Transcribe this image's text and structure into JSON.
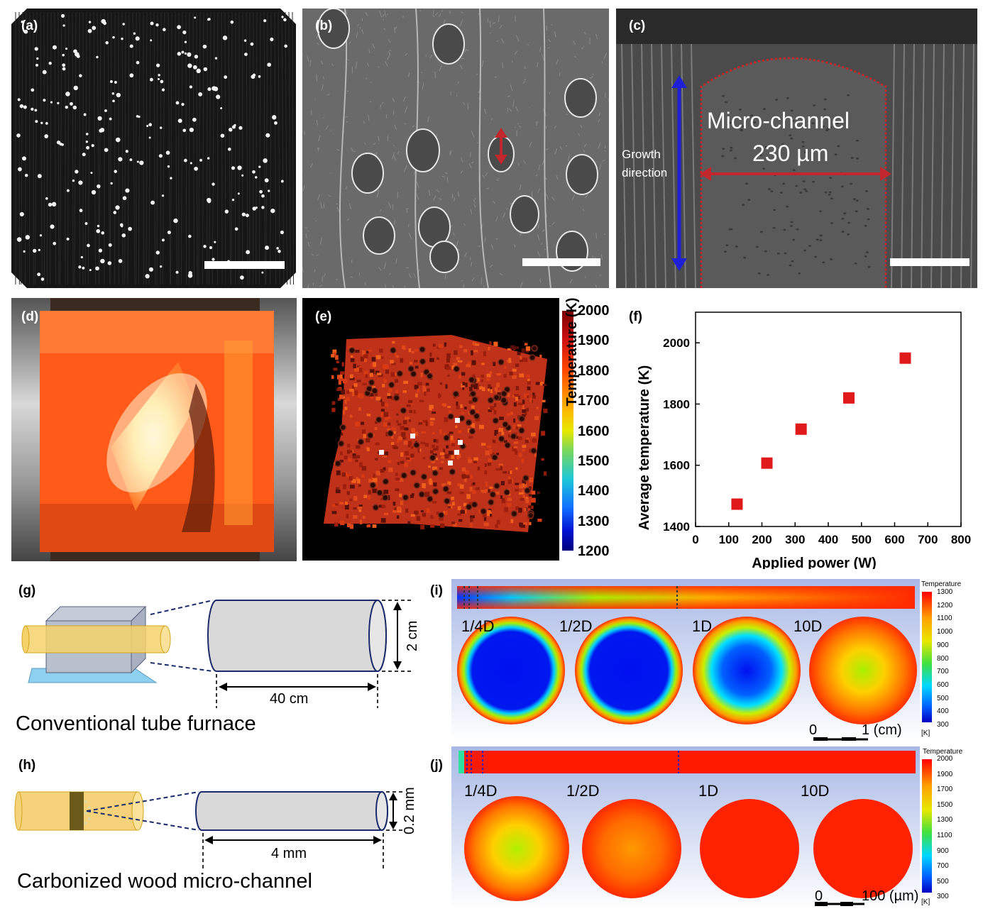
{
  "panels": {
    "a": {
      "label": "(a)"
    },
    "b": {
      "label": "(b)"
    },
    "c": {
      "label": "(c)",
      "channel_title": "Micro-channel",
      "channel_width": "230 µm",
      "growth_line1": "Growth",
      "growth_line2": "direction"
    },
    "d": {
      "label": "(d)"
    },
    "e": {
      "label": "(e)",
      "colorbar_title": "Temperature (K)",
      "ticks": [
        "2000",
        "1900",
        "1800",
        "1700",
        "1600",
        "1500",
        "1400",
        "1300",
        "1200"
      ]
    },
    "f": {
      "label": "(f)"
    },
    "g": {
      "label": "(g)",
      "dim_diameter": "2 cm",
      "dim_length": "40 cm",
      "caption": "Conventional tube furnace"
    },
    "h": {
      "label": "(h)",
      "dim_diameter": "0.2 mm",
      "dim_length": "4 mm",
      "caption": "Carbonized wood micro-channel"
    },
    "i": {
      "label": "(i)",
      "sections": [
        "1/4D",
        "1/2D",
        "1D",
        "10D"
      ],
      "legend_title": "Temperature",
      "legend_unit": "[K]",
      "legend_ticks": [
        "1300",
        "1200",
        "1100",
        "1000",
        "900",
        "800",
        "700",
        "600",
        "500",
        "400",
        "300"
      ],
      "scale_zero": "0",
      "scale_end": "1 (cm)"
    },
    "j": {
      "label": "(j)",
      "sections": [
        "1/4D",
        "1/2D",
        "1D",
        "10D"
      ],
      "legend_title": "Temperature",
      "legend_unit": "[K]",
      "legend_ticks": [
        "2000",
        "1900",
        "1700",
        "1500",
        "1300",
        "1100",
        "900",
        "700",
        "500",
        "300"
      ],
      "scale_zero": "0",
      "scale_end": "100 (µm)"
    }
  },
  "colors": {
    "red_dim": "#c1272d",
    "blue_arrow": "#1f1fd6",
    "marker": "#e0191b"
  },
  "chart_data": {
    "type": "scatter",
    "xlabel": "Applied power (W)",
    "ylabel": "Average temperature (K)",
    "xlim": [
      0,
      800
    ],
    "ylim": [
      1400,
      2100
    ],
    "xticks": [
      0,
      100,
      200,
      300,
      400,
      500,
      600,
      700,
      800
    ],
    "yticks": [
      1400,
      1600,
      1800,
      2000
    ],
    "x": [
      125,
      215,
      318,
      462,
      632
    ],
    "y": [
      1473,
      1607,
      1718,
      1820,
      1950
    ],
    "grid": false
  }
}
